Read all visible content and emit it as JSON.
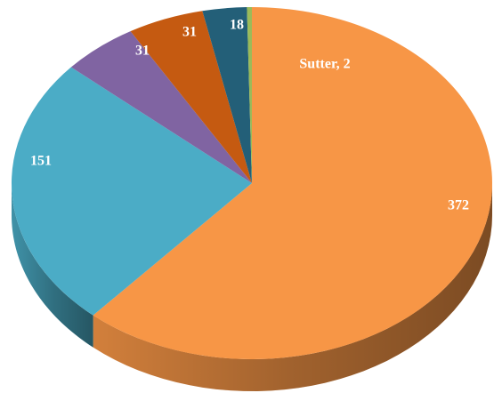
{
  "chart_data": {
    "type": "pie",
    "categories": [
      null,
      null,
      null,
      null,
      null,
      "Sutter"
    ],
    "values": [
      372,
      151,
      31,
      31,
      18,
      2
    ],
    "value_labels": [
      "372",
      "151",
      "31",
      "31",
      "18",
      "Sutter, 2"
    ],
    "colors": [
      "#f79646",
      "#4bacc6",
      "#8064a2",
      "#c55a11",
      "#235f78",
      "#9bbb59"
    ],
    "start_angle": 0,
    "direction": "clockwise",
    "three_d": true
  }
}
